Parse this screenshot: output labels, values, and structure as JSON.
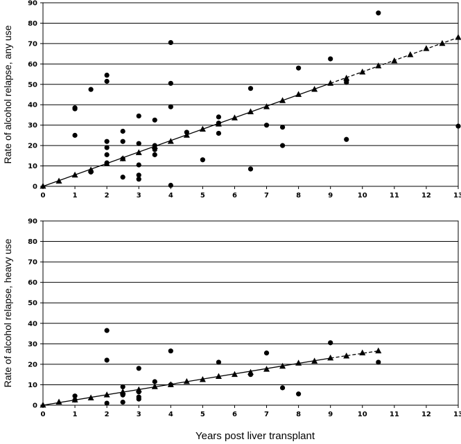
{
  "xlabel": "Years post liver transplant",
  "chart_data": [
    {
      "type": "scatter",
      "ylabel": "Rate of alcohol relapse, any use",
      "xlim": [
        0,
        13
      ],
      "ylim": [
        0,
        90
      ],
      "xticks": [
        0,
        1,
        2,
        3,
        4,
        5,
        6,
        7,
        8,
        9,
        10,
        11,
        12,
        13
      ],
      "yticks": [
        0,
        10,
        20,
        30,
        40,
        50,
        60,
        70,
        80,
        90
      ],
      "grid": "horizontal",
      "series": [
        {
          "marker": "circle",
          "points": [
            [
              1,
              38.5
            ],
            [
              1,
              38
            ],
            [
              1,
              25
            ],
            [
              1.5,
              47.5
            ],
            [
              1.5,
              7.5
            ],
            [
              1.5,
              7
            ],
            [
              2,
              54.5
            ],
            [
              2,
              51.5
            ],
            [
              2,
              22
            ],
            [
              2,
              19
            ],
            [
              2,
              15.5
            ],
            [
              2,
              11.5
            ],
            [
              2.5,
              27
            ],
            [
              2.5,
              22
            ],
            [
              2.5,
              13.5
            ],
            [
              2.5,
              4.5
            ],
            [
              3,
              34.5
            ],
            [
              3,
              21
            ],
            [
              3,
              10.5
            ],
            [
              3,
              5.5
            ],
            [
              3,
              3.5
            ],
            [
              3.5,
              32.5
            ],
            [
              3.5,
              20
            ],
            [
              3.5,
              18
            ],
            [
              3.5,
              15.5
            ],
            [
              4,
              70.5
            ],
            [
              4,
              50.5
            ],
            [
              4,
              39
            ],
            [
              4,
              0.5
            ],
            [
              4.5,
              26.5
            ],
            [
              5,
              13
            ],
            [
              5.5,
              34
            ],
            [
              5.5,
              31
            ],
            [
              5.5,
              26
            ],
            [
              6.5,
              48
            ],
            [
              6.5,
              8.5
            ],
            [
              7,
              30
            ],
            [
              7.5,
              29
            ],
            [
              7.5,
              20
            ],
            [
              8,
              58
            ],
            [
              9,
              62.5
            ],
            [
              9.5,
              52
            ],
            [
              9.5,
              51
            ],
            [
              9.5,
              23
            ],
            [
              10.5,
              85
            ],
            [
              13,
              29.5
            ]
          ]
        },
        {
          "marker": "triangle",
          "points": [
            [
              0,
              0
            ],
            [
              0.5,
              2.5
            ],
            [
              1,
              5.5
            ],
            [
              1.5,
              8
            ],
            [
              2,
              11
            ],
            [
              2.5,
              13.5
            ],
            [
              3,
              16.5
            ],
            [
              3.5,
              19.5
            ],
            [
              4,
              22
            ],
            [
              4.5,
              25
            ],
            [
              5,
              28
            ],
            [
              5.5,
              30.5
            ],
            [
              6,
              33.5
            ],
            [
              6.5,
              36.5
            ],
            [
              7,
              39
            ],
            [
              7.5,
              42
            ],
            [
              8,
              45
            ],
            [
              8.5,
              47.5
            ],
            [
              9,
              50.5
            ],
            [
              9.5,
              53
            ],
            [
              10,
              56
            ],
            [
              10.5,
              59
            ],
            [
              11,
              61.5
            ],
            [
              11.5,
              64.5
            ],
            [
              12,
              67.5
            ],
            [
              12.5,
              70
            ],
            [
              13,
              73
            ]
          ]
        }
      ],
      "fit_line": {
        "x_start": 0,
        "y_start": 0,
        "x_solid_end": 9,
        "y_solid_end": 50.5,
        "x_end": 13,
        "y_end": 73
      }
    },
    {
      "type": "scatter",
      "ylabel": "Rate of alcohol relapse, heavy use",
      "xlim": [
        0,
        13
      ],
      "ylim": [
        0,
        90
      ],
      "xticks": [
        0,
        1,
        2,
        3,
        4,
        5,
        6,
        7,
        8,
        9,
        10,
        11,
        12,
        13
      ],
      "yticks": [
        0,
        10,
        20,
        30,
        40,
        50,
        60,
        70,
        80,
        90
      ],
      "grid": "horizontal",
      "series": [
        {
          "marker": "circle",
          "points": [
            [
              1,
              4.5
            ],
            [
              1,
              2.5
            ],
            [
              2,
              36.5
            ],
            [
              2,
              22
            ],
            [
              2,
              1
            ],
            [
              2.5,
              9
            ],
            [
              2.5,
              5
            ],
            [
              2.5,
              1.5
            ],
            [
              3,
              18
            ],
            [
              3,
              6.5
            ],
            [
              3,
              4
            ],
            [
              3,
              3
            ],
            [
              3.5,
              11.5
            ],
            [
              4,
              26.5
            ],
            [
              4,
              10
            ],
            [
              5.5,
              21
            ],
            [
              6.5,
              15
            ],
            [
              7,
              25.5
            ],
            [
              7.5,
              8.5
            ],
            [
              8,
              5.5
            ],
            [
              9,
              30.5
            ],
            [
              10.5,
              21
            ]
          ]
        },
        {
          "marker": "triangle",
          "points": [
            [
              0,
              0
            ],
            [
              0.5,
              1.5
            ],
            [
              1,
              2.5
            ],
            [
              1.5,
              3.5
            ],
            [
              2,
              5
            ],
            [
              2.5,
              6.5
            ],
            [
              3,
              7.5
            ],
            [
              3.5,
              9
            ],
            [
              4,
              10
            ],
            [
              4.5,
              11.5
            ],
            [
              5,
              12.5
            ],
            [
              5.5,
              14
            ],
            [
              6,
              15
            ],
            [
              6.5,
              16
            ],
            [
              7,
              17.5
            ],
            [
              7.5,
              19
            ],
            [
              8,
              20.5
            ],
            [
              8.5,
              21.5
            ],
            [
              9,
              23
            ],
            [
              9.5,
              24
            ],
            [
              10,
              25.5
            ],
            [
              10.5,
              26.5
            ]
          ]
        }
      ],
      "fit_line": {
        "x_start": 0,
        "y_start": 0,
        "x_solid_end": 9,
        "y_solid_end": 23,
        "x_end": 10.5,
        "y_end": 26.5
      }
    }
  ]
}
